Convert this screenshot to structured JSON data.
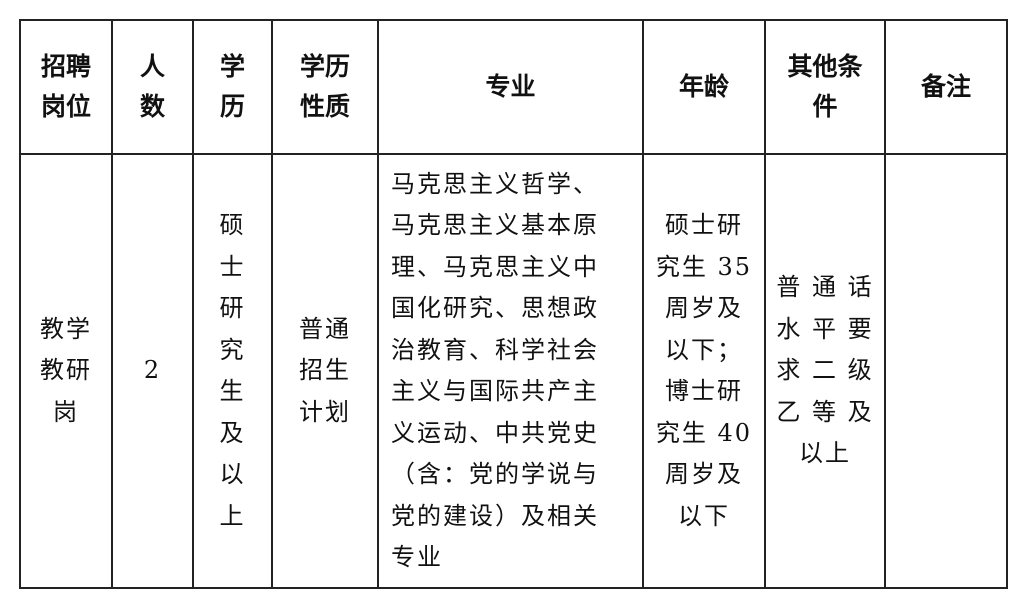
{
  "table": {
    "headers": [
      [
        "招聘",
        "岗位"
      ],
      [
        "人",
        "数"
      ],
      [
        "学",
        "历"
      ],
      [
        "学历",
        "性质"
      ],
      [
        "专业"
      ],
      [
        "年龄"
      ],
      [
        "其他条",
        "件"
      ],
      [
        "备注"
      ]
    ],
    "rows": [
      {
        "cells": [
          [
            "教学",
            "教研",
            "岗"
          ],
          [
            "2"
          ],
          [
            "硕",
            "士",
            "研",
            "究",
            "生",
            "及",
            "以",
            "上"
          ],
          [
            "普通",
            "招生",
            "计划"
          ],
          [
            "马克思主义哲学、",
            "马克思主义基本原",
            "理、马克思主义中",
            "国化研究、思想政",
            "治教育、科学社会",
            "主义与国际共产主",
            "义运动、中共党史",
            "（含：党的学说与",
            "党的建设）及相关",
            "专业"
          ],
          [
            "硕士研",
            "究生 35",
            "周岁及",
            "以下；",
            "博士研",
            "究生 40",
            "周岁及",
            "以下"
          ],
          [
            "普 通 话",
            "水 平 要",
            "求 二 级",
            "乙 等 及",
            "以上"
          ],
          []
        ]
      }
    ]
  }
}
